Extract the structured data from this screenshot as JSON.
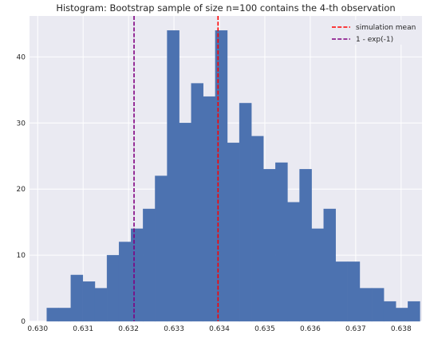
{
  "chart_data": {
    "type": "bar",
    "title": "Histogram:  Bootstrap sample of size n=100 contains the 4-th observation",
    "xlabel": "",
    "ylabel": "",
    "bin_start": 0.6302,
    "bin_width": 0.000265,
    "counts": [
      2,
      2,
      7,
      6,
      5,
      10,
      12,
      14,
      17,
      22,
      44,
      30,
      36,
      34,
      44,
      27,
      33,
      28,
      23,
      24,
      18,
      23,
      14,
      17,
      9,
      9,
      5,
      5,
      3,
      2,
      3
    ],
    "xlim": [
      0.62982,
      0.63846
    ],
    "ylim": [
      0,
      46.2
    ],
    "x_ticks": [
      "0.630",
      "0.631",
      "0.632",
      "0.633",
      "0.634",
      "0.635",
      "0.636",
      "0.637",
      "0.638"
    ],
    "x_tick_values": [
      0.63,
      0.631,
      0.632,
      0.633,
      0.634,
      0.635,
      0.636,
      0.637,
      0.638
    ],
    "y_ticks": [
      "0",
      "10",
      "20",
      "30",
      "40"
    ],
    "y_tick_values": [
      0,
      10,
      20,
      30,
      40
    ],
    "bar_color": "#4c72b0",
    "background_color": "#eaeaf2",
    "grid": true,
    "legend_position": "top-right",
    "reference_lines": [
      {
        "name": "simulation mean",
        "x": 0.63397,
        "color": "#ff0000"
      },
      {
        "name": "1 - exp(-1)",
        "x": 0.632121,
        "color": "#800080"
      }
    ]
  }
}
